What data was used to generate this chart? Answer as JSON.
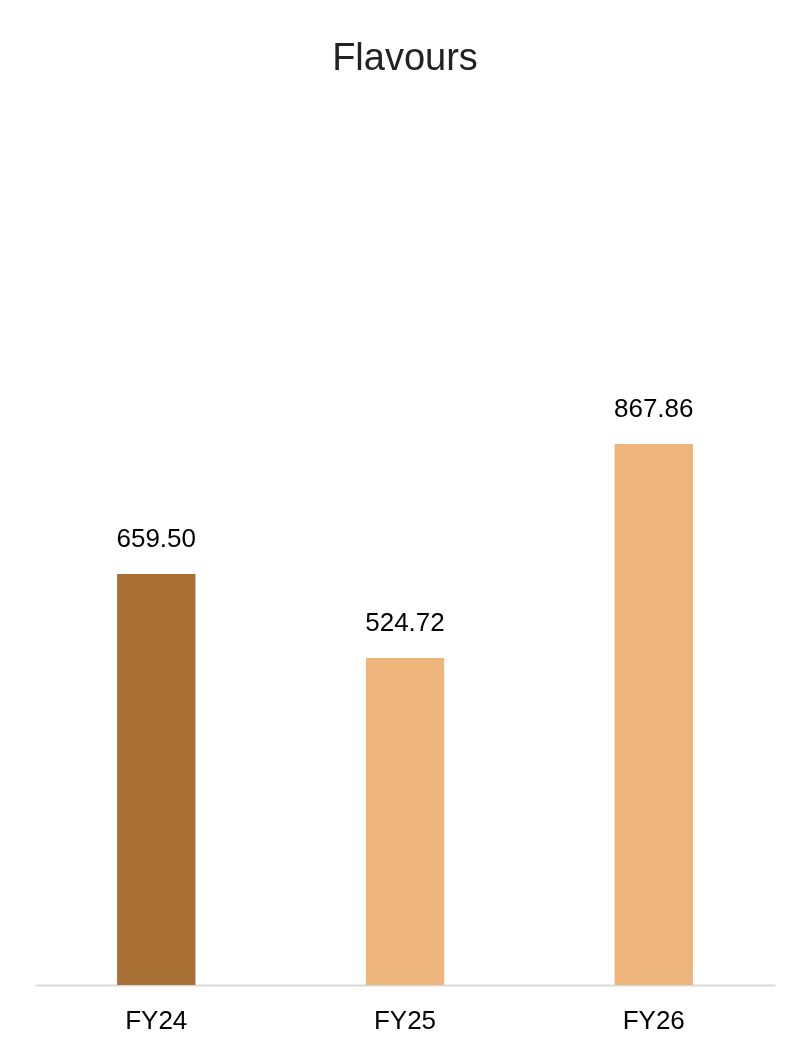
{
  "chart_data": {
    "type": "bar",
    "title": "Flavours",
    "categories": [
      "FY24",
      "FY25",
      "FY26"
    ],
    "values": [
      659.5,
      524.72,
      867.86
    ],
    "value_labels": [
      "659.50",
      "524.72",
      "867.86"
    ],
    "colors": [
      "#a87035",
      "#edb47c",
      "#edb47c"
    ]
  }
}
